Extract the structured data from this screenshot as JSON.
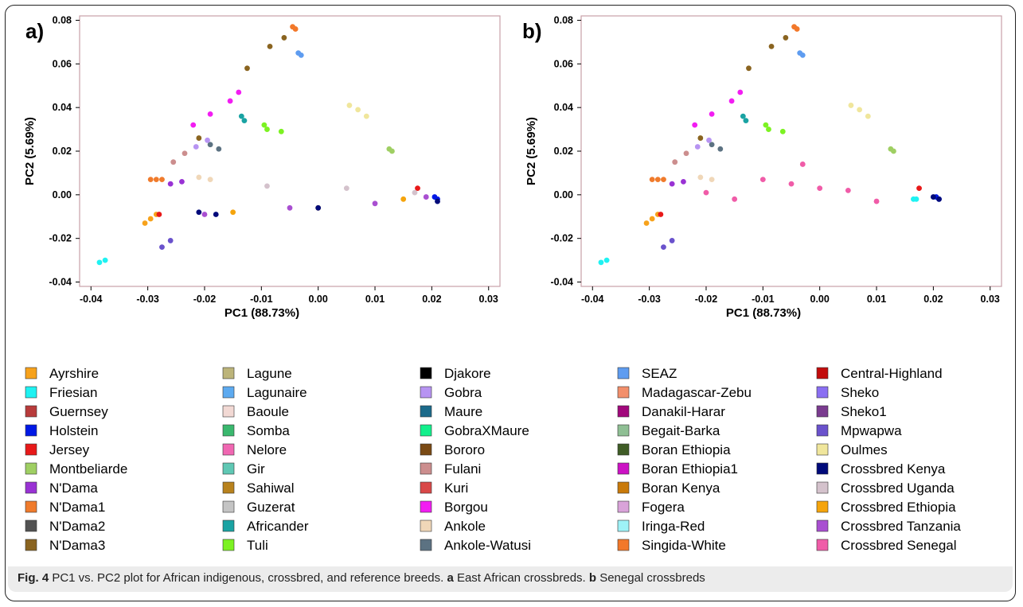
{
  "caption": {
    "fig_label": "Fig. 4",
    "text_1": " PC1 vs. PC2 plot for African indigenous, crossbred, and reference breeds. ",
    "a_label": "a",
    "text_2": " East African crossbreds. ",
    "b_label": "b",
    "text_3": " Senegal crossbreds"
  },
  "chart_data": [
    {
      "type": "scatter",
      "panel": "a)",
      "xlabel": "PC1 (88.73%)",
      "ylabel": "PC2 (5.69%)",
      "xlim": [
        -0.042,
        0.032
      ],
      "ylim": [
        -0.042,
        0.082
      ],
      "xticks": [
        "-0.04",
        "-0.03",
        "-0.02",
        "-0.01",
        "0.00",
        "0.01",
        "0.02",
        "0.03"
      ],
      "yticks": [
        "-0.04",
        "-0.02",
        "0.00",
        "0.02",
        "0.04",
        "0.06",
        "0.08"
      ],
      "clusters": [
        {
          "breed": "Ayrshire",
          "x": [
            -0.0305,
            -0.0295,
            -0.0285
          ],
          "y": [
            -0.013,
            -0.011,
            -0.009
          ]
        },
        {
          "breed": "Friesian",
          "x": [
            -0.0385,
            -0.0375
          ],
          "y": [
            -0.031,
            -0.03
          ]
        },
        {
          "breed": "Jersey",
          "x": [
            -0.028,
            0.0175
          ],
          "y": [
            -0.009,
            0.003
          ]
        },
        {
          "breed": "Holstein",
          "x": [
            0.0205,
            0.021
          ],
          "y": [
            -0.001,
            -0.002
          ]
        },
        {
          "breed": "N'Dama1",
          "x": [
            -0.0295,
            -0.0285,
            -0.0275
          ],
          "y": [
            0.007,
            0.007,
            0.007
          ]
        },
        {
          "breed": "N'Dama",
          "x": [
            -0.026,
            -0.024
          ],
          "y": [
            0.005,
            0.006
          ]
        },
        {
          "breed": "N'Dama3",
          "x": [
            -0.021,
            -0.0125,
            -0.0085,
            -0.006
          ],
          "y": [
            0.026,
            0.058,
            0.068,
            0.072
          ]
        },
        {
          "breed": "Singida-White",
          "x": [
            -0.0045,
            -0.004
          ],
          "y": [
            0.077,
            0.076
          ]
        },
        {
          "breed": "SEAZ",
          "x": [
            -0.0035,
            -0.003
          ],
          "y": [
            0.065,
            0.064
          ]
        },
        {
          "breed": "Borgou",
          "x": [
            -0.022,
            -0.019,
            -0.0155,
            -0.014
          ],
          "y": [
            0.032,
            0.037,
            0.043,
            0.047
          ]
        },
        {
          "breed": "Africander",
          "x": [
            -0.0135,
            -0.013
          ],
          "y": [
            0.036,
            0.034
          ]
        },
        {
          "breed": "Tuli",
          "x": [
            -0.0095,
            -0.009,
            -0.0065
          ],
          "y": [
            0.032,
            0.03,
            0.029
          ]
        },
        {
          "breed": "Oulmes",
          "x": [
            0.0055,
            0.007,
            0.0085
          ],
          "y": [
            0.041,
            0.039,
            0.036
          ]
        },
        {
          "breed": "Montbeliarde",
          "x": [
            0.0125,
            0.013
          ],
          "y": [
            0.021,
            0.02
          ]
        },
        {
          "breed": "Ankole-Watusi",
          "x": [
            -0.019,
            -0.0175
          ],
          "y": [
            0.023,
            0.021
          ]
        },
        {
          "breed": "Fulani",
          "x": [
            -0.0255,
            -0.0235
          ],
          "y": [
            0.015,
            0.019
          ]
        },
        {
          "breed": "Gobra",
          "x": [
            -0.0215,
            -0.0195
          ],
          "y": [
            0.022,
            0.025
          ]
        },
        {
          "breed": "Ankole",
          "x": [
            -0.021,
            -0.019
          ],
          "y": [
            0.008,
            0.007
          ]
        },
        {
          "breed": "Mpwapwa",
          "x": [
            -0.0275,
            -0.026
          ],
          "y": [
            -0.024,
            -0.021
          ]
        },
        {
          "breed": "Crossbred Uganda",
          "x": [
            -0.009,
            0.005,
            0.017
          ],
          "y": [
            0.004,
            0.003,
            0.001
          ]
        },
        {
          "breed": "Crossbred Tanzania",
          "x": [
            -0.02,
            -0.005,
            0.01,
            0.019
          ],
          "y": [
            -0.009,
            -0.006,
            -0.004,
            -0.001
          ]
        },
        {
          "breed": "Crossbred Ethiopia",
          "x": [
            -0.015,
            0.0,
            0.015
          ],
          "y": [
            -0.008,
            -0.006,
            -0.002
          ]
        },
        {
          "breed": "Crossbred Kenya",
          "x": [
            -0.021,
            -0.018,
            0.0,
            0.021
          ],
          "y": [
            -0.008,
            -0.009,
            -0.006,
            -0.003
          ]
        }
      ]
    },
    {
      "type": "scatter",
      "panel": "b)",
      "xlabel": "PC1 (88.73%)",
      "ylabel": "PC2 (5.69%)",
      "xlim": [
        -0.042,
        0.032
      ],
      "ylim": [
        -0.042,
        0.082
      ],
      "xticks": [
        "-0.04",
        "-0.03",
        "-0.02",
        "-0.01",
        "0.00",
        "0.01",
        "0.02",
        "0.03"
      ],
      "yticks": [
        "-0.04",
        "-0.02",
        "0.00",
        "0.02",
        "0.04",
        "0.06",
        "0.08"
      ],
      "clusters": [
        {
          "breed": "Ayrshire",
          "x": [
            -0.0305,
            -0.0295,
            -0.0285
          ],
          "y": [
            -0.013,
            -0.011,
            -0.009
          ]
        },
        {
          "breed": "Friesian",
          "x": [
            -0.0385,
            -0.0375,
            0.0165,
            0.017
          ],
          "y": [
            -0.031,
            -0.03,
            -0.002,
            -0.002
          ]
        },
        {
          "breed": "Jersey",
          "x": [
            -0.028,
            0.0175
          ],
          "y": [
            -0.009,
            0.003
          ]
        },
        {
          "breed": "Holstein",
          "x": [
            0.0205,
            0.021
          ],
          "y": [
            -0.001,
            -0.002
          ]
        },
        {
          "breed": "N'Dama1",
          "x": [
            -0.0295,
            -0.0285,
            -0.0275
          ],
          "y": [
            0.007,
            0.007,
            0.007
          ]
        },
        {
          "breed": "N'Dama",
          "x": [
            -0.026,
            -0.024
          ],
          "y": [
            0.005,
            0.006
          ]
        },
        {
          "breed": "N'Dama3",
          "x": [
            -0.021,
            -0.0125,
            -0.0085,
            -0.006
          ],
          "y": [
            0.026,
            0.058,
            0.068,
            0.072
          ]
        },
        {
          "breed": "Singida-White",
          "x": [
            -0.0045,
            -0.004
          ],
          "y": [
            0.077,
            0.076
          ]
        },
        {
          "breed": "SEAZ",
          "x": [
            -0.0035,
            -0.003
          ],
          "y": [
            0.065,
            0.064
          ]
        },
        {
          "breed": "Borgou",
          "x": [
            -0.022,
            -0.019,
            -0.0155,
            -0.014
          ],
          "y": [
            0.032,
            0.037,
            0.043,
            0.047
          ]
        },
        {
          "breed": "Africander",
          "x": [
            -0.0135,
            -0.013
          ],
          "y": [
            0.036,
            0.034
          ]
        },
        {
          "breed": "Tuli",
          "x": [
            -0.0095,
            -0.009,
            -0.0065
          ],
          "y": [
            0.032,
            0.03,
            0.029
          ]
        },
        {
          "breed": "Oulmes",
          "x": [
            0.0055,
            0.007,
            0.0085
          ],
          "y": [
            0.041,
            0.039,
            0.036
          ]
        },
        {
          "breed": "Montbeliarde",
          "x": [
            0.0125,
            0.013
          ],
          "y": [
            0.021,
            0.02
          ]
        },
        {
          "breed": "Ankole-Watusi",
          "x": [
            -0.019,
            -0.0175
          ],
          "y": [
            0.023,
            0.021
          ]
        },
        {
          "breed": "Fulani",
          "x": [
            -0.0255,
            -0.0235
          ],
          "y": [
            0.015,
            0.019
          ]
        },
        {
          "breed": "Gobra",
          "x": [
            -0.0215,
            -0.0195
          ],
          "y": [
            0.022,
            0.025
          ]
        },
        {
          "breed": "Ankole",
          "x": [
            -0.021,
            -0.019
          ],
          "y": [
            0.008,
            0.007
          ]
        },
        {
          "breed": "Mpwapwa",
          "x": [
            -0.0275,
            -0.026
          ],
          "y": [
            -0.024,
            -0.021
          ]
        },
        {
          "breed": "Crossbred Kenya",
          "x": [
            0.02,
            0.021
          ],
          "y": [
            -0.001,
            -0.002
          ]
        },
        {
          "breed": "Crossbred Senegal",
          "x": [
            -0.02,
            -0.015,
            -0.01,
            -0.005,
            -0.003,
            0.0,
            0.005,
            0.01
          ],
          "y": [
            0.001,
            -0.002,
            0.007,
            0.005,
            0.014,
            0.003,
            0.002,
            -0.003
          ]
        }
      ]
    }
  ],
  "legend": [
    {
      "label": "Ayrshire",
      "color": "#f7a21b"
    },
    {
      "label": "Friesian",
      "color": "#1ff2f2"
    },
    {
      "label": "Guernsey",
      "color": "#b83b3b"
    },
    {
      "label": "Holstein",
      "color": "#0018e6"
    },
    {
      "label": "Jersey",
      "color": "#e81919"
    },
    {
      "label": "Montbeliarde",
      "color": "#9fcf63"
    },
    {
      "label": "N'Dama",
      "color": "#9932d4"
    },
    {
      "label": "N'Dama1",
      "color": "#f07b2c"
    },
    {
      "label": "N'Dama2",
      "color": "#525252"
    },
    {
      "label": "N'Dama3",
      "color": "#8a6420"
    },
    {
      "label": "Lagune",
      "color": "#bcb47a"
    },
    {
      "label": "Lagunaire",
      "color": "#5daaf0"
    },
    {
      "label": "Baoule",
      "color": "#f2d9d4"
    },
    {
      "label": "Somba",
      "color": "#3ab86e"
    },
    {
      "label": "Nelore",
      "color": "#f067b2"
    },
    {
      "label": "Gir",
      "color": "#5fc8b4"
    },
    {
      "label": "Sahiwal",
      "color": "#b8821d"
    },
    {
      "label": "Guzerat",
      "color": "#c4c4c4"
    },
    {
      "label": "Africander",
      "color": "#1aa3a3"
    },
    {
      "label": "Tuli",
      "color": "#7cf222"
    },
    {
      "label": "Djakore",
      "color": "#000000"
    },
    {
      "label": "Gobra",
      "color": "#b794f2"
    },
    {
      "label": "Maure",
      "color": "#1b6a8a"
    },
    {
      "label": "GobraXMaure",
      "color": "#13f08c"
    },
    {
      "label": "Bororo",
      "color": "#7a4a14"
    },
    {
      "label": "Fulani",
      "color": "#cc8e8e"
    },
    {
      "label": "Kuri",
      "color": "#d94848"
    },
    {
      "label": "Borgou",
      "color": "#f21df2"
    },
    {
      "label": "Ankole",
      "color": "#f0d7b8"
    },
    {
      "label": "Ankole-Watusi",
      "color": "#5c7282"
    },
    {
      "label": "SEAZ",
      "color": "#5e9cf0"
    },
    {
      "label": "Madagascar-Zebu",
      "color": "#f28f6b"
    },
    {
      "label": "Danakil-Harar",
      "color": "#a1087c"
    },
    {
      "label": "Begait-Barka",
      "color": "#8fbf94"
    },
    {
      "label": "Boran Ethiopia",
      "color": "#3f5c26"
    },
    {
      "label": "Boran Ethiopia1",
      "color": "#cc12c4"
    },
    {
      "label": "Boran Kenya",
      "color": "#c97a0a"
    },
    {
      "label": "Fogera",
      "color": "#d9a3d9"
    },
    {
      "label": "Iringa-Red",
      "color": "#9ef2f7"
    },
    {
      "label": "Singida-White",
      "color": "#f2782a"
    },
    {
      "label": "Central-Highland",
      "color": "#c20c0c"
    },
    {
      "label": "Sheko",
      "color": "#8a6ff2"
    },
    {
      "label": "Sheko1",
      "color": "#7a3b8f"
    },
    {
      "label": "Mpwapwa",
      "color": "#6a52cc"
    },
    {
      "label": "Oulmes",
      "color": "#f0e69c"
    },
    {
      "label": "Crossbred Kenya",
      "color": "#000a7a"
    },
    {
      "label": "Crossbred Uganda",
      "color": "#d4c2cc"
    },
    {
      "label": "Crossbred Ethiopia",
      "color": "#f5a40c"
    },
    {
      "label": "Crossbred Tanzania",
      "color": "#a94fd1"
    },
    {
      "label": "Crossbred Senegal",
      "color": "#f05ca8"
    }
  ],
  "colors": {
    "frame_border": "#c8a0a8",
    "tick": "#000000"
  }
}
